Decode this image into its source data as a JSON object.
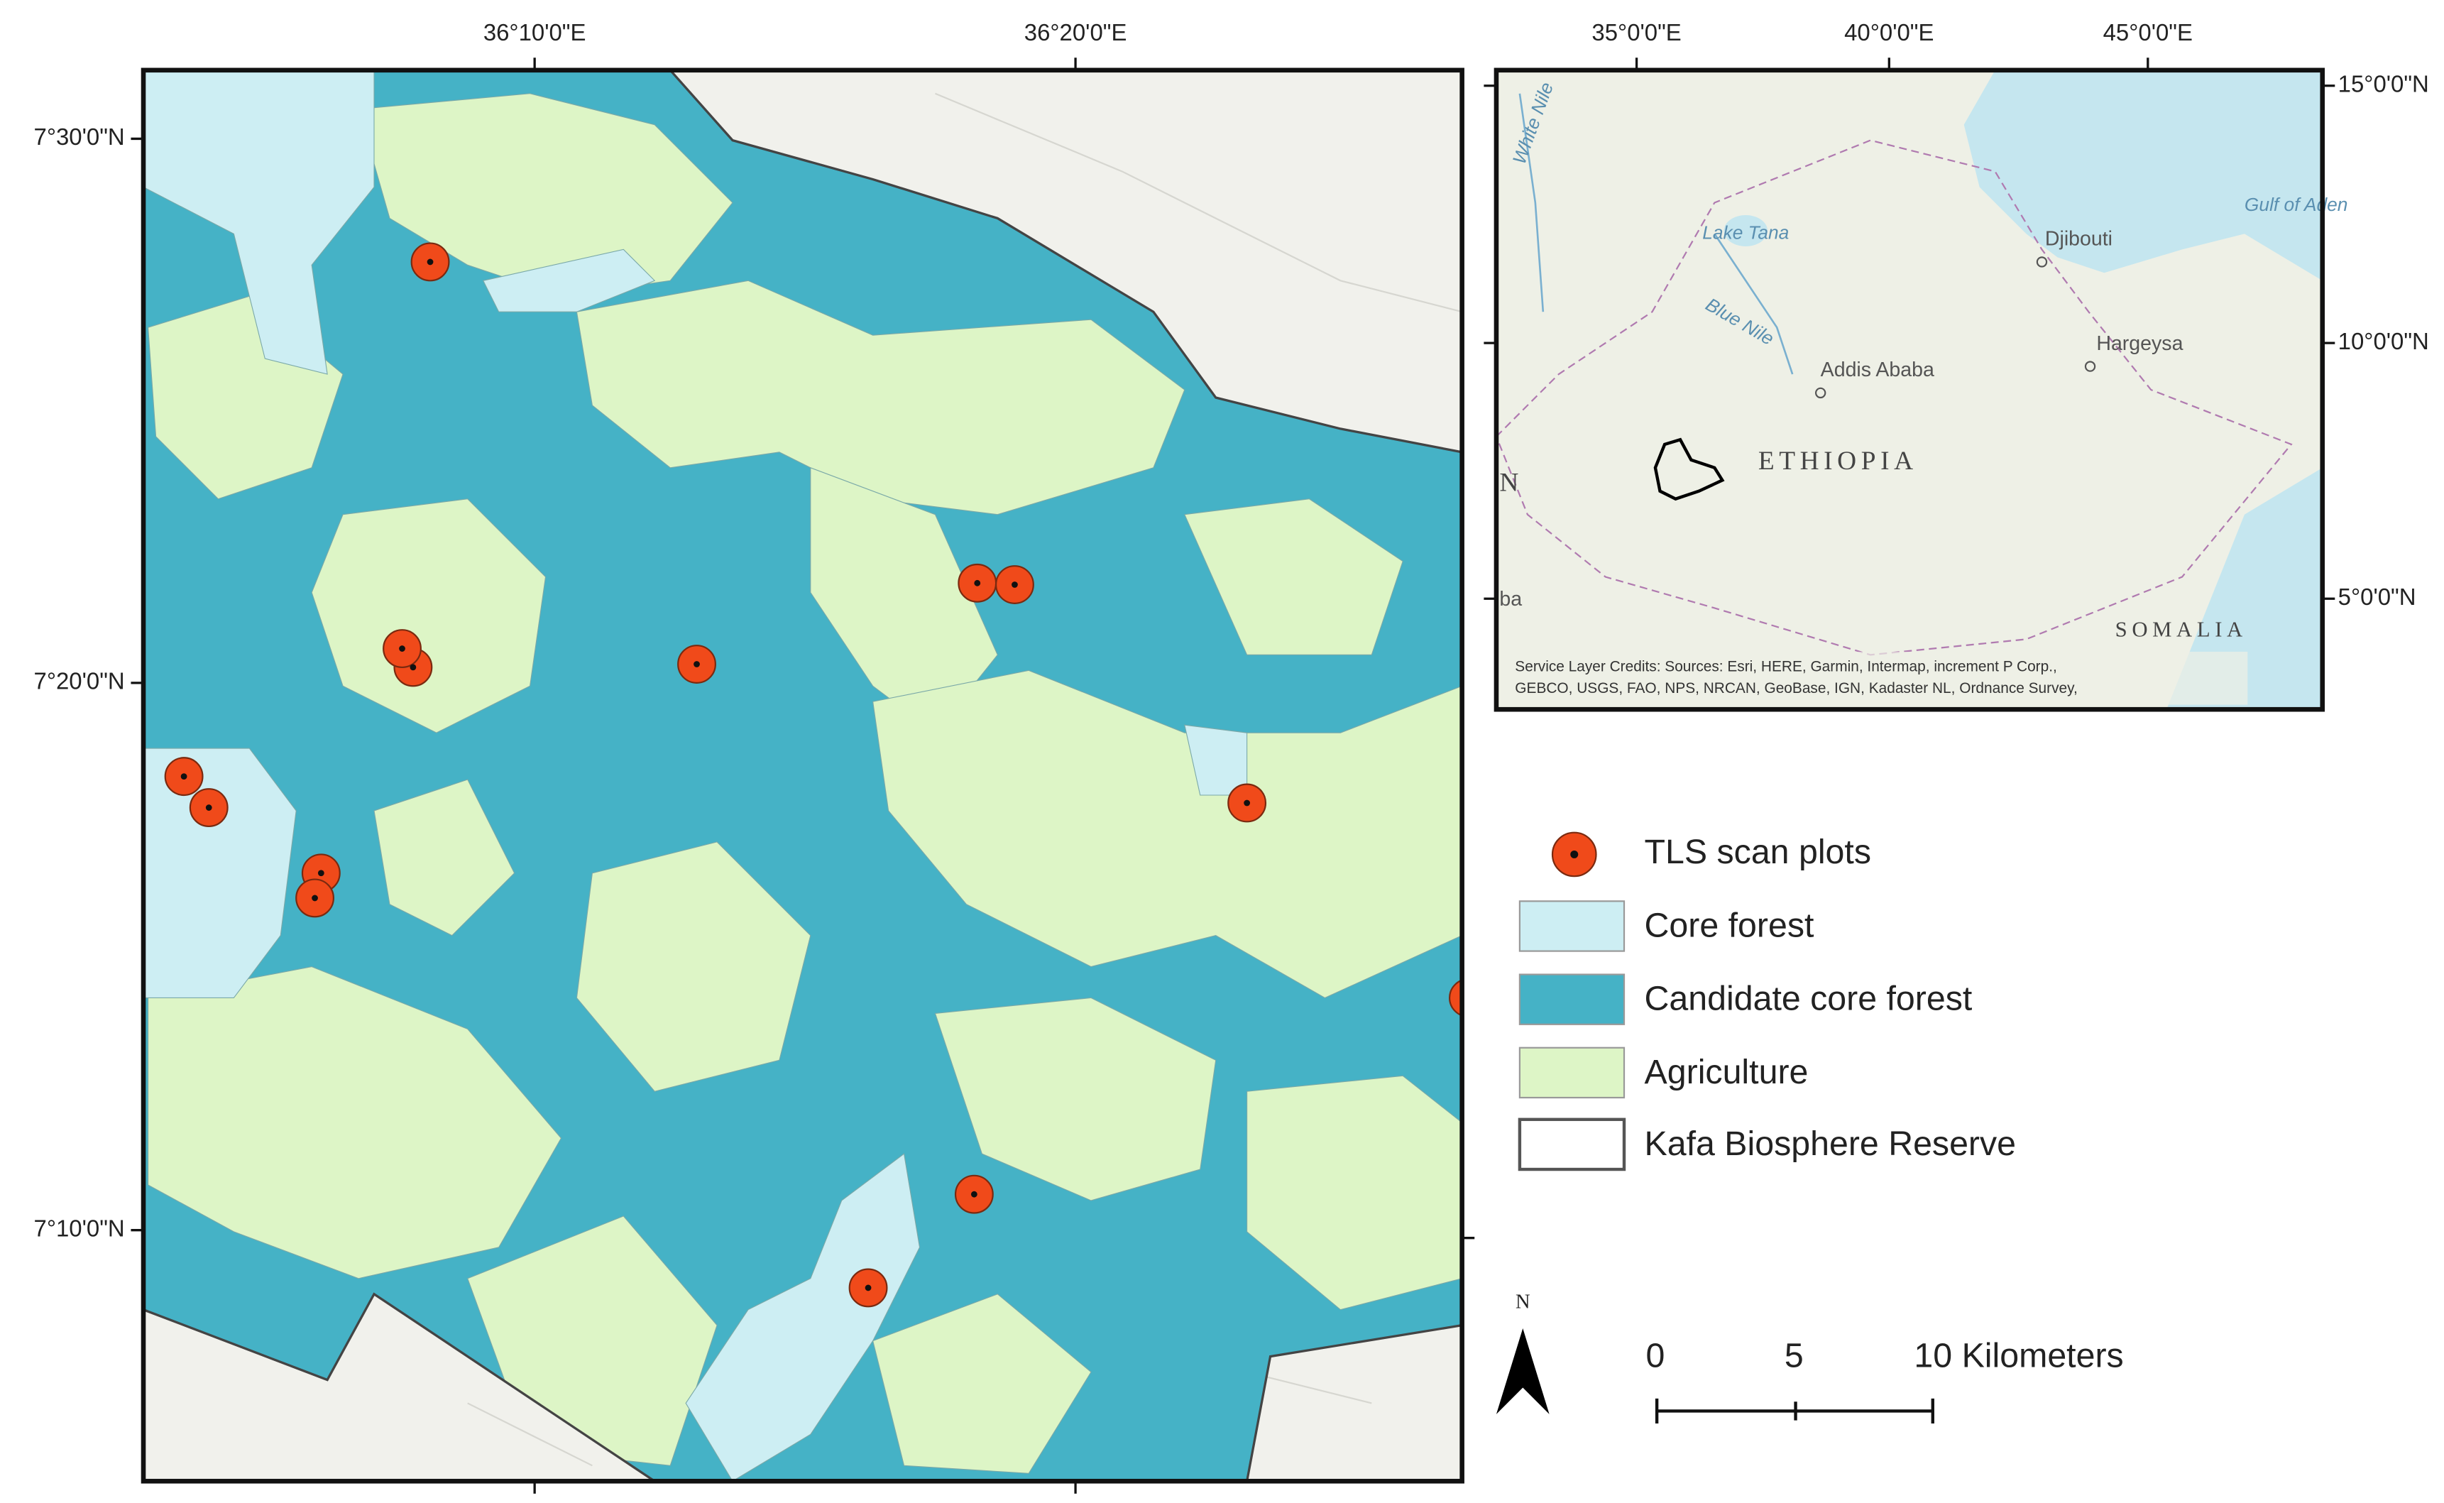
{
  "main_map": {
    "lon_labels": [
      "36°10'0\"E",
      "36°20'0\"E"
    ],
    "lat_labels": [
      "7°30'0\"N",
      "7°20'0\"N",
      "7°10'0\"N"
    ]
  },
  "inset_map": {
    "lon_labels": [
      "35°0'0\"E",
      "40°0'0\"E",
      "45°0'0\"E"
    ],
    "lat_labels": [
      "15°0'0\"N",
      "10°0'0\"N",
      "5°0'0\"N"
    ],
    "place_labels": [
      "White Nile",
      "Lake Tana",
      "Blue Nile",
      "Djibouti",
      "Hargeysa",
      "Addis Ababa",
      "ETHIOPIA",
      "SOMALIA",
      "Gulf of Aden",
      "N",
      "ba"
    ],
    "credits": [
      "Service Layer Credits: Sources: Esri, HERE, Garmin, Intermap, increment P Corp.,",
      "GEBCO, USGS, FAO, NPS, NRCAN, GeoBase, IGN, Kadaster NL, Ordnance Survey,"
    ]
  },
  "legend": {
    "items": [
      "TLS scan plots",
      "Core forest",
      "Candidate core forest",
      "Agriculture",
      "Kafa Biosphere Reserve"
    ]
  },
  "north_arrow": "N",
  "scale_bar": {
    "labels": [
      "0",
      "5",
      "10 Kilometers"
    ]
  }
}
